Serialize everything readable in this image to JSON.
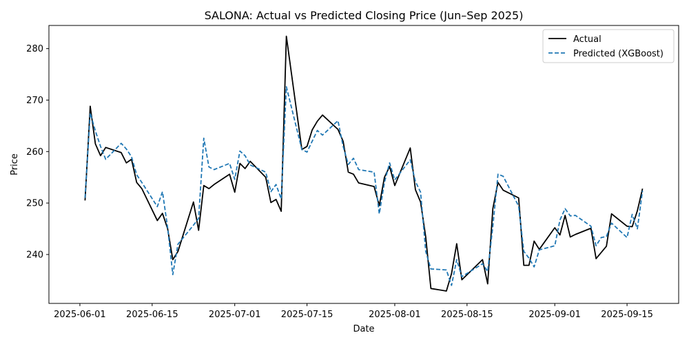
{
  "chart_data": {
    "type": "line",
    "title": "SALONA: Actual vs Predicted Closing Price (Jun–Sep 2025)",
    "xlabel": "Date",
    "ylabel": "Price",
    "xlim": [
      "2025-05-26",
      "2025-09-25"
    ],
    "ylim": [
      230.5,
      284.5
    ],
    "x_ticks": [
      "2025-06-01",
      "2025-06-15",
      "2025-07-01",
      "2025-07-15",
      "2025-08-01",
      "2025-08-15",
      "2025-09-01",
      "2025-09-15"
    ],
    "y_ticks": [
      240,
      250,
      260,
      270,
      280
    ],
    "grid": false,
    "legend_position": "top-right",
    "series": [
      {
        "name": "Actual",
        "color": "#000000",
        "style": "solid",
        "points": [
          [
            "2025-06-02",
            250.5
          ],
          [
            "2025-06-03",
            268.8
          ],
          [
            "2025-06-04",
            261.5
          ],
          [
            "2025-06-05",
            259.2
          ],
          [
            "2025-06-06",
            260.8
          ],
          [
            "2025-06-09",
            259.8
          ],
          [
            "2025-06-10",
            257.8
          ],
          [
            "2025-06-11",
            258.5
          ],
          [
            "2025-06-12",
            254.0
          ],
          [
            "2025-06-13",
            252.8
          ],
          [
            "2025-06-16",
            246.6
          ],
          [
            "2025-06-17",
            248.0
          ],
          [
            "2025-06-18",
            245.0
          ],
          [
            "2025-06-19",
            239.0
          ],
          [
            "2025-06-20",
            240.6
          ],
          [
            "2025-06-23",
            250.2
          ],
          [
            "2025-06-24",
            244.7
          ],
          [
            "2025-06-25",
            253.4
          ],
          [
            "2025-06-26",
            252.8
          ],
          [
            "2025-06-27",
            253.6
          ],
          [
            "2025-06-30",
            255.6
          ],
          [
            "2025-07-01",
            252.1
          ],
          [
            "2025-07-02",
            257.7
          ],
          [
            "2025-07-03",
            256.7
          ],
          [
            "2025-07-04",
            258.1
          ],
          [
            "2025-07-07",
            255.0
          ],
          [
            "2025-07-08",
            250.1
          ],
          [
            "2025-07-09",
            250.7
          ],
          [
            "2025-07-10",
            248.4
          ],
          [
            "2025-07-11",
            282.4
          ],
          [
            "2025-07-14",
            260.4
          ],
          [
            "2025-07-15",
            261.0
          ],
          [
            "2025-07-16",
            264.2
          ],
          [
            "2025-07-17",
            265.9
          ],
          [
            "2025-07-18",
            267.1
          ],
          [
            "2025-07-21",
            264.3
          ],
          [
            "2025-07-22",
            262.0
          ],
          [
            "2025-07-23",
            256.0
          ],
          [
            "2025-07-24",
            255.6
          ],
          [
            "2025-07-25",
            253.9
          ],
          [
            "2025-07-28",
            253.2
          ],
          [
            "2025-07-29",
            249.5
          ],
          [
            "2025-07-30",
            255.0
          ],
          [
            "2025-07-31",
            257.1
          ],
          [
            "2025-08-01",
            253.4
          ],
          [
            "2025-08-04",
            260.7
          ],
          [
            "2025-08-05",
            252.6
          ],
          [
            "2025-08-06",
            250.2
          ],
          [
            "2025-08-07",
            243.4
          ],
          [
            "2025-08-08",
            233.4
          ],
          [
            "2025-08-11",
            232.9
          ],
          [
            "2025-08-12",
            236.3
          ],
          [
            "2025-08-13",
            242.1
          ],
          [
            "2025-08-14",
            235.1
          ],
          [
            "2025-08-18",
            239.0
          ],
          [
            "2025-08-19",
            234.3
          ],
          [
            "2025-08-20",
            248.9
          ],
          [
            "2025-08-21",
            254.0
          ],
          [
            "2025-08-22",
            252.5
          ],
          [
            "2025-08-25",
            251.0
          ],
          [
            "2025-08-26",
            237.9
          ],
          [
            "2025-08-27",
            237.9
          ],
          [
            "2025-08-28",
            242.6
          ],
          [
            "2025-08-29",
            241.0
          ],
          [
            "2025-09-01",
            245.2
          ],
          [
            "2025-09-02",
            243.8
          ],
          [
            "2025-09-03",
            247.6
          ],
          [
            "2025-09-04",
            243.4
          ],
          [
            "2025-09-05",
            243.9
          ],
          [
            "2025-09-08",
            245.1
          ],
          [
            "2025-09-09",
            239.2
          ],
          [
            "2025-09-11",
            241.6
          ],
          [
            "2025-09-12",
            247.9
          ],
          [
            "2025-09-15",
            245.5
          ],
          [
            "2025-09-16",
            245.4
          ],
          [
            "2025-09-17",
            248.5
          ],
          [
            "2025-09-18",
            252.8
          ]
        ]
      },
      {
        "name": "Predicted (XGBoost)",
        "color": "#1f77b4",
        "style": "dashed",
        "points": [
          [
            "2025-06-02",
            251.0
          ],
          [
            "2025-06-03",
            267.5
          ],
          [
            "2025-06-04",
            264.0
          ],
          [
            "2025-06-05",
            261.0
          ],
          [
            "2025-06-06",
            258.5
          ],
          [
            "2025-06-09",
            261.6
          ],
          [
            "2025-06-10",
            260.5
          ],
          [
            "2025-06-11",
            259.0
          ],
          [
            "2025-06-12",
            255.5
          ],
          [
            "2025-06-13",
            254.0
          ],
          [
            "2025-06-16",
            249.3
          ],
          [
            "2025-06-17",
            252.2
          ],
          [
            "2025-06-18",
            245.2
          ],
          [
            "2025-06-19",
            236.1
          ],
          [
            "2025-06-20",
            242.0
          ],
          [
            "2025-06-23",
            245.7
          ],
          [
            "2025-06-24",
            247.0
          ],
          [
            "2025-06-25",
            262.6
          ],
          [
            "2025-06-26",
            257.0
          ],
          [
            "2025-06-27",
            256.5
          ],
          [
            "2025-06-30",
            257.7
          ],
          [
            "2025-07-01",
            254.6
          ],
          [
            "2025-07-02",
            260.1
          ],
          [
            "2025-07-03",
            259.2
          ],
          [
            "2025-07-04",
            257.4
          ],
          [
            "2025-07-07",
            256.0
          ],
          [
            "2025-07-08",
            252.2
          ],
          [
            "2025-07-09",
            253.6
          ],
          [
            "2025-07-10",
            250.8
          ],
          [
            "2025-07-11",
            272.6
          ],
          [
            "2025-07-14",
            260.4
          ],
          [
            "2025-07-15",
            259.9
          ],
          [
            "2025-07-16",
            262.0
          ],
          [
            "2025-07-17",
            264.1
          ],
          [
            "2025-07-18",
            263.2
          ],
          [
            "2025-07-21",
            266.0
          ],
          [
            "2025-07-22",
            261.0
          ],
          [
            "2025-07-23",
            257.5
          ],
          [
            "2025-07-24",
            258.7
          ],
          [
            "2025-07-25",
            256.5
          ],
          [
            "2025-07-28",
            256.0
          ],
          [
            "2025-07-29",
            247.9
          ],
          [
            "2025-07-30",
            254.0
          ],
          [
            "2025-07-31",
            257.8
          ],
          [
            "2025-08-01",
            254.5
          ],
          [
            "2025-08-04",
            258.4
          ],
          [
            "2025-08-05",
            254.2
          ],
          [
            "2025-08-06",
            252.1
          ],
          [
            "2025-08-07",
            240.6
          ],
          [
            "2025-08-08",
            237.2
          ],
          [
            "2025-08-11",
            237.0
          ],
          [
            "2025-08-12",
            234.0
          ],
          [
            "2025-08-13",
            239.0
          ],
          [
            "2025-08-14",
            235.7
          ],
          [
            "2025-08-18",
            238.2
          ],
          [
            "2025-08-19",
            236.7
          ],
          [
            "2025-08-20",
            245.5
          ],
          [
            "2025-08-21",
            255.6
          ],
          [
            "2025-08-22",
            255.2
          ],
          [
            "2025-08-25",
            249.4
          ],
          [
            "2025-08-26",
            240.6
          ],
          [
            "2025-08-27",
            239.3
          ],
          [
            "2025-08-28",
            237.6
          ],
          [
            "2025-08-29",
            240.9
          ],
          [
            "2025-09-01",
            241.7
          ],
          [
            "2025-09-02",
            246.7
          ],
          [
            "2025-09-03",
            248.9
          ],
          [
            "2025-09-04",
            247.5
          ],
          [
            "2025-09-05",
            247.6
          ],
          [
            "2025-09-08",
            245.5
          ],
          [
            "2025-09-09",
            241.7
          ],
          [
            "2025-09-10",
            243.3
          ],
          [
            "2025-09-11",
            243.5
          ],
          [
            "2025-09-12",
            246.1
          ],
          [
            "2025-09-15",
            243.3
          ],
          [
            "2025-09-16",
            247.8
          ],
          [
            "2025-09-17",
            245.0
          ],
          [
            "2025-09-18",
            252.4
          ]
        ]
      }
    ]
  }
}
